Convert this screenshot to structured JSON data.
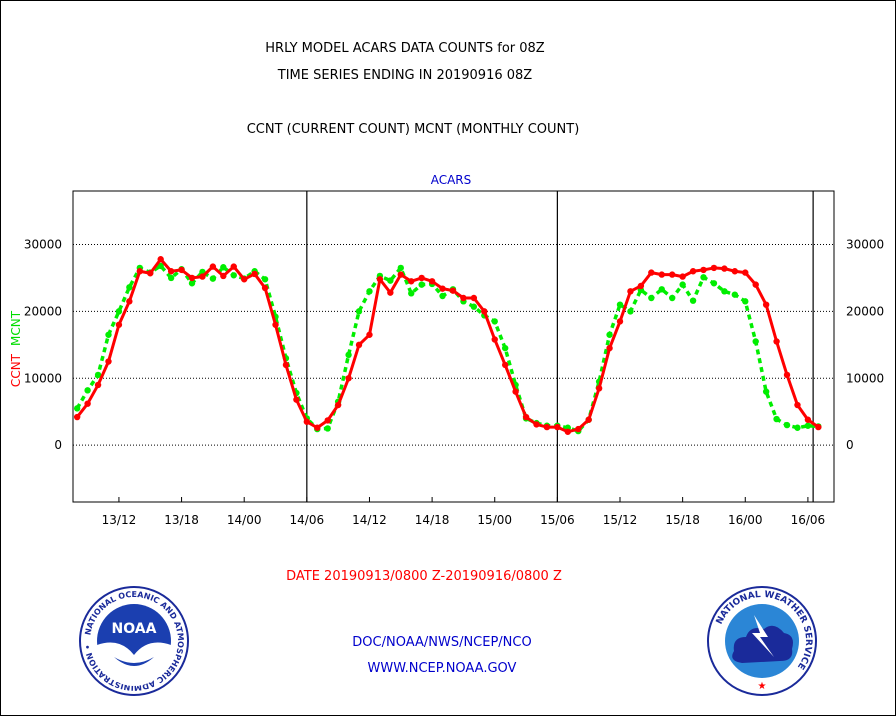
{
  "header": {
    "line1": "HRLY MODEL ACARS DATA COUNTS for 08Z",
    "line2": "TIME SERIES ENDING IN 20190916 08Z",
    "line3": "CCNT (CURRENT COUNT) MCNT (MONTHLY COUNT)"
  },
  "footer": {
    "date_range": "DATE 20190913/0800 Z-20190916/0800 Z",
    "org": "DOC/NOAA/NWS/NCEP/NCO",
    "url": "WWW.NCEP.NOAA.GOV"
  },
  "logos": {
    "noaa_text": "NOAA",
    "noaa_ring": "NATIONAL OCEANIC AND ATMOSPHERIC ADMINISTRATION • U.S. DEPARTMENT OF COMMERCE •",
    "nws_ring": "NATIONAL WEATHER SERVICE"
  },
  "colors": {
    "ccnt": "#ff0000",
    "mcnt": "#00ee00",
    "title_blue": "#0000cc",
    "date_red": "#ff0000"
  },
  "chart_data": {
    "type": "line",
    "title": "ACARS",
    "ylabel_left_ccnt": "CCNT",
    "ylabel_left_mcnt": "MCNT",
    "ylim": [
      -8500,
      38000
    ],
    "xlim": [
      -0.4,
      72.5
    ],
    "yticks": [
      0,
      10000,
      20000,
      30000
    ],
    "ytick_labels": [
      "0",
      "10000",
      "20000",
      "30000"
    ],
    "xticks": [
      4,
      10,
      16,
      22,
      28,
      34,
      40,
      46,
      52,
      58,
      64,
      70
    ],
    "xtick_labels": [
      "13/12",
      "13/18",
      "14/00",
      "14/06",
      "14/12",
      "14/18",
      "15/00",
      "15/06",
      "15/12",
      "15/18",
      "16/00",
      "16/06"
    ],
    "day_boundaries": [
      22,
      46,
      70.5
    ],
    "grid": "horizontal dotted",
    "series": [
      {
        "name": "CCNT",
        "values": [
          4200,
          6200,
          9000,
          12500,
          18000,
          21500,
          26000,
          25700,
          27800,
          26000,
          26200,
          25000,
          25200,
          26700,
          25300,
          26700,
          24800,
          25600,
          23500,
          18000,
          12000,
          6800,
          3500,
          2600,
          3700,
          6000,
          10000,
          15000,
          16500,
          24800,
          22800,
          25500,
          24500,
          25000,
          24500,
          23400,
          23100,
          22000,
          22000,
          20000,
          15800,
          12000,
          8000,
          4200,
          3100,
          2700,
          2700,
          2000,
          2400,
          3800,
          8500,
          14500,
          18500,
          23000,
          23800,
          25800,
          25500,
          25500,
          25200,
          26000,
          26200,
          26500,
          26400,
          26000,
          25800,
          24000,
          21000,
          15500,
          10500,
          6000,
          3800,
          2700
        ]
      },
      {
        "name": "MCNT",
        "values": [
          5500,
          8200,
          10500,
          16500,
          20000,
          23600,
          26500,
          25800,
          26800,
          25000,
          26300,
          24200,
          25900,
          24900,
          26600,
          25400,
          24900,
          26000,
          24800,
          19200,
          13000,
          7800,
          4000,
          2400,
          2500,
          6500,
          13500,
          20000,
          23000,
          25300,
          24600,
          26500,
          22700,
          24000,
          24100,
          22300,
          23300,
          21500,
          20700,
          19400,
          18500,
          14500,
          9000,
          4000,
          3300,
          2900,
          2900,
          2600,
          2100,
          3800,
          9500,
          16500,
          21000,
          20000,
          23200,
          22000,
          23300,
          22000,
          24000,
          21600,
          25100,
          24200,
          23000,
          22500,
          21500,
          15500,
          8000,
          3900,
          3000,
          2600,
          2900,
          2800
        ]
      }
    ]
  }
}
